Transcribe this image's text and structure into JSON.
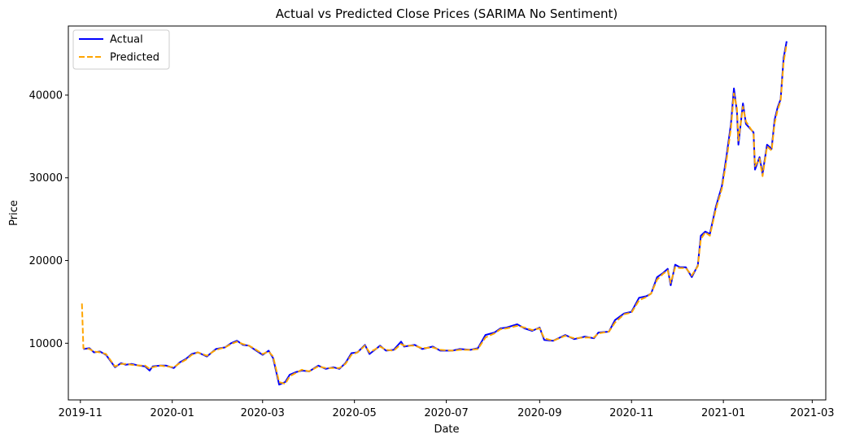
{
  "chart_data": {
    "type": "line",
    "title": "Actual vs Predicted Close Prices (SARIMA No Sentiment)",
    "xlabel": "Date",
    "ylabel": "Price",
    "x_range": [
      "2019-10-24",
      "2021-03-10"
    ],
    "ylim": [
      3150,
      48350
    ],
    "x_ticks": [
      {
        "date": "2019-11-01",
        "label": "2019-11"
      },
      {
        "date": "2020-01-01",
        "label": "2020-01"
      },
      {
        "date": "2020-03-01",
        "label": "2020-03"
      },
      {
        "date": "2020-05-01",
        "label": "2020-05"
      },
      {
        "date": "2020-07-01",
        "label": "2020-07"
      },
      {
        "date": "2020-09-01",
        "label": "2020-09"
      },
      {
        "date": "2020-11-01",
        "label": "2020-11"
      },
      {
        "date": "2021-01-01",
        "label": "2021-01"
      },
      {
        "date": "2021-03-01",
        "label": "2021-03"
      }
    ],
    "y_ticks": [
      {
        "value": 10000,
        "label": "10000"
      },
      {
        "value": 20000,
        "label": "20000"
      },
      {
        "value": 30000,
        "label": "30000"
      },
      {
        "value": 40000,
        "label": "40000"
      }
    ],
    "grid": false,
    "legend": "top-left",
    "series": [
      {
        "name": "Actual",
        "color": "#0000ff",
        "style": "solid",
        "points": [
          [
            "2019-11-03",
            9300
          ],
          [
            "2019-11-07",
            9400
          ],
          [
            "2019-11-10",
            8900
          ],
          [
            "2019-11-14",
            9000
          ],
          [
            "2019-11-18",
            8600
          ],
          [
            "2019-11-22",
            7600
          ],
          [
            "2019-11-24",
            7100
          ],
          [
            "2019-11-28",
            7600
          ],
          [
            "2019-12-01",
            7400
          ],
          [
            "2019-12-05",
            7500
          ],
          [
            "2019-12-10",
            7300
          ],
          [
            "2019-12-14",
            7200
          ],
          [
            "2019-12-17",
            6700
          ],
          [
            "2019-12-19",
            7200
          ],
          [
            "2019-12-24",
            7300
          ],
          [
            "2019-12-28",
            7300
          ],
          [
            "2020-01-02",
            7000
          ],
          [
            "2020-01-06",
            7700
          ],
          [
            "2020-01-10",
            8100
          ],
          [
            "2020-01-14",
            8700
          ],
          [
            "2020-01-18",
            8900
          ],
          [
            "2020-01-24",
            8400
          ],
          [
            "2020-01-30",
            9300
          ],
          [
            "2020-02-05",
            9500
          ],
          [
            "2020-02-09",
            10000
          ],
          [
            "2020-02-13",
            10300
          ],
          [
            "2020-02-17",
            9800
          ],
          [
            "2020-02-21",
            9700
          ],
          [
            "2020-02-25",
            9200
          ],
          [
            "2020-03-01",
            8600
          ],
          [
            "2020-03-05",
            9100
          ],
          [
            "2020-03-08",
            8200
          ],
          [
            "2020-03-12",
            5000
          ],
          [
            "2020-03-16",
            5300
          ],
          [
            "2020-03-19",
            6200
          ],
          [
            "2020-03-23",
            6500
          ],
          [
            "2020-03-27",
            6700
          ],
          [
            "2020-04-01",
            6600
          ],
          [
            "2020-04-07",
            7300
          ],
          [
            "2020-04-12",
            6900
          ],
          [
            "2020-04-17",
            7100
          ],
          [
            "2020-04-21",
            6900
          ],
          [
            "2020-04-25",
            7600
          ],
          [
            "2020-04-29",
            8800
          ],
          [
            "2020-05-03",
            8900
          ],
          [
            "2020-05-08",
            9800
          ],
          [
            "2020-05-11",
            8700
          ],
          [
            "2020-05-18",
            9700
          ],
          [
            "2020-05-22",
            9100
          ],
          [
            "2020-05-27",
            9200
          ],
          [
            "2020-06-01",
            10200
          ],
          [
            "2020-06-03",
            9600
          ],
          [
            "2020-06-10",
            9800
          ],
          [
            "2020-06-15",
            9300
          ],
          [
            "2020-06-22",
            9600
          ],
          [
            "2020-06-27",
            9100
          ],
          [
            "2020-07-05",
            9100
          ],
          [
            "2020-07-10",
            9300
          ],
          [
            "2020-07-17",
            9200
          ],
          [
            "2020-07-22",
            9400
          ],
          [
            "2020-07-27",
            11000
          ],
          [
            "2020-08-02",
            11300
          ],
          [
            "2020-08-06",
            11800
          ],
          [
            "2020-08-10",
            11900
          ],
          [
            "2020-08-17",
            12300
          ],
          [
            "2020-08-22",
            11800
          ],
          [
            "2020-08-27",
            11500
          ],
          [
            "2020-09-01",
            11900
          ],
          [
            "2020-09-04",
            10400
          ],
          [
            "2020-09-10",
            10300
          ],
          [
            "2020-09-18",
            11000
          ],
          [
            "2020-09-24",
            10500
          ],
          [
            "2020-10-01",
            10800
          ],
          [
            "2020-10-07",
            10600
          ],
          [
            "2020-10-10",
            11300
          ],
          [
            "2020-10-17",
            11400
          ],
          [
            "2020-10-21",
            12800
          ],
          [
            "2020-10-27",
            13600
          ],
          [
            "2020-11-01",
            13800
          ],
          [
            "2020-11-06",
            15500
          ],
          [
            "2020-11-11",
            15700
          ],
          [
            "2020-11-14",
            16000
          ],
          [
            "2020-11-18",
            18000
          ],
          [
            "2020-11-22",
            18500
          ],
          [
            "2020-11-25",
            19000
          ],
          [
            "2020-11-27",
            17000
          ],
          [
            "2020-11-30",
            19500
          ],
          [
            "2020-12-03",
            19200
          ],
          [
            "2020-12-07",
            19200
          ],
          [
            "2020-12-11",
            18000
          ],
          [
            "2020-12-15",
            19400
          ],
          [
            "2020-12-17",
            23000
          ],
          [
            "2020-12-20",
            23500
          ],
          [
            "2020-12-23",
            23200
          ],
          [
            "2020-12-27",
            26500
          ],
          [
            "2020-12-31",
            29000
          ],
          [
            "2021-01-03",
            32500
          ],
          [
            "2021-01-06",
            36500
          ],
          [
            "2021-01-08",
            40800
          ],
          [
            "2021-01-10",
            38000
          ],
          [
            "2021-01-11",
            34000
          ],
          [
            "2021-01-14",
            39000
          ],
          [
            "2021-01-16",
            36500
          ],
          [
            "2021-01-21",
            35500
          ],
          [
            "2021-01-22",
            31000
          ],
          [
            "2021-01-25",
            32500
          ],
          [
            "2021-01-27",
            30500
          ],
          [
            "2021-01-30",
            34000
          ],
          [
            "2021-02-02",
            33500
          ],
          [
            "2021-02-04",
            37000
          ],
          [
            "2021-02-06",
            38500
          ],
          [
            "2021-02-08",
            39500
          ],
          [
            "2021-02-10",
            44500
          ],
          [
            "2021-02-12",
            46500
          ]
        ]
      },
      {
        "name": "Predicted",
        "color": "#ffa500",
        "style": "dashed",
        "points": [
          [
            "2019-11-02",
            14800
          ],
          [
            "2019-11-03",
            9400
          ],
          [
            "2019-11-07",
            9300
          ],
          [
            "2019-11-10",
            9000
          ],
          [
            "2019-11-14",
            8900
          ],
          [
            "2019-11-18",
            8700
          ],
          [
            "2019-11-22",
            7700
          ],
          [
            "2019-11-24",
            7200
          ],
          [
            "2019-11-28",
            7500
          ],
          [
            "2019-12-01",
            7500
          ],
          [
            "2019-12-05",
            7400
          ],
          [
            "2019-12-10",
            7300
          ],
          [
            "2019-12-14",
            7300
          ],
          [
            "2019-12-17",
            6900
          ],
          [
            "2019-12-19",
            7100
          ],
          [
            "2019-12-24",
            7300
          ],
          [
            "2019-12-28",
            7200
          ],
          [
            "2020-01-02",
            7100
          ],
          [
            "2020-01-06",
            7600
          ],
          [
            "2020-01-10",
            8000
          ],
          [
            "2020-01-14",
            8600
          ],
          [
            "2020-01-18",
            8900
          ],
          [
            "2020-01-24",
            8500
          ],
          [
            "2020-01-30",
            9200
          ],
          [
            "2020-02-05",
            9500
          ],
          [
            "2020-02-09",
            9900
          ],
          [
            "2020-02-13",
            10200
          ],
          [
            "2020-02-17",
            9900
          ],
          [
            "2020-02-21",
            9700
          ],
          [
            "2020-02-25",
            9300
          ],
          [
            "2020-03-01",
            8700
          ],
          [
            "2020-03-05",
            9000
          ],
          [
            "2020-03-08",
            8400
          ],
          [
            "2020-03-12",
            5300
          ],
          [
            "2020-03-16",
            5100
          ],
          [
            "2020-03-19",
            6000
          ],
          [
            "2020-03-23",
            6400
          ],
          [
            "2020-03-27",
            6800
          ],
          [
            "2020-04-01",
            6600
          ],
          [
            "2020-04-07",
            7200
          ],
          [
            "2020-04-12",
            7000
          ],
          [
            "2020-04-17",
            7000
          ],
          [
            "2020-04-21",
            7000
          ],
          [
            "2020-04-25",
            7500
          ],
          [
            "2020-04-29",
            8600
          ],
          [
            "2020-05-03",
            8900
          ],
          [
            "2020-05-08",
            9700
          ],
          [
            "2020-05-11",
            8900
          ],
          [
            "2020-05-18",
            9600
          ],
          [
            "2020-05-22",
            9200
          ],
          [
            "2020-05-27",
            9100
          ],
          [
            "2020-06-01",
            9900
          ],
          [
            "2020-06-03",
            9700
          ],
          [
            "2020-06-10",
            9700
          ],
          [
            "2020-06-15",
            9400
          ],
          [
            "2020-06-22",
            9500
          ],
          [
            "2020-06-27",
            9200
          ],
          [
            "2020-07-05",
            9100
          ],
          [
            "2020-07-10",
            9200
          ],
          [
            "2020-07-17",
            9200
          ],
          [
            "2020-07-22",
            9300
          ],
          [
            "2020-07-27",
            10700
          ],
          [
            "2020-08-02",
            11200
          ],
          [
            "2020-08-06",
            11700
          ],
          [
            "2020-08-10",
            11800
          ],
          [
            "2020-08-17",
            12100
          ],
          [
            "2020-08-22",
            11900
          ],
          [
            "2020-08-27",
            11600
          ],
          [
            "2020-09-01",
            11800
          ],
          [
            "2020-09-04",
            10600
          ],
          [
            "2020-09-10",
            10300
          ],
          [
            "2020-09-18",
            10900
          ],
          [
            "2020-09-24",
            10600
          ],
          [
            "2020-10-01",
            10700
          ],
          [
            "2020-10-07",
            10700
          ],
          [
            "2020-10-10",
            11200
          ],
          [
            "2020-10-17",
            11400
          ],
          [
            "2020-10-21",
            12500
          ],
          [
            "2020-10-27",
            13500
          ],
          [
            "2020-11-01",
            13700
          ],
          [
            "2020-11-06",
            15200
          ],
          [
            "2020-11-11",
            15600
          ],
          [
            "2020-11-14",
            16000
          ],
          [
            "2020-11-18",
            17700
          ],
          [
            "2020-11-22",
            18400
          ],
          [
            "2020-11-25",
            18800
          ],
          [
            "2020-11-27",
            17300
          ],
          [
            "2020-11-30",
            19200
          ],
          [
            "2020-12-03",
            19100
          ],
          [
            "2020-12-07",
            19100
          ],
          [
            "2020-12-11",
            18200
          ],
          [
            "2020-12-15",
            19300
          ],
          [
            "2020-12-17",
            22600
          ],
          [
            "2020-12-20",
            23400
          ],
          [
            "2020-12-23",
            23000
          ],
          [
            "2020-12-27",
            26200
          ],
          [
            "2020-12-31",
            28700
          ],
          [
            "2021-01-03",
            32000
          ],
          [
            "2021-01-06",
            36000
          ],
          [
            "2021-01-08",
            40200
          ],
          [
            "2021-01-10",
            38400
          ],
          [
            "2021-01-11",
            34500
          ],
          [
            "2021-01-14",
            38600
          ],
          [
            "2021-01-16",
            36800
          ],
          [
            "2021-01-21",
            35400
          ],
          [
            "2021-01-22",
            31400
          ],
          [
            "2021-01-25",
            32300
          ],
          [
            "2021-01-27",
            30200
          ],
          [
            "2021-01-30",
            33800
          ],
          [
            "2021-02-02",
            33300
          ],
          [
            "2021-02-04",
            36600
          ],
          [
            "2021-02-06",
            38200
          ],
          [
            "2021-02-08",
            39300
          ],
          [
            "2021-02-10",
            44000
          ],
          [
            "2021-02-12",
            46200
          ]
        ]
      }
    ]
  }
}
